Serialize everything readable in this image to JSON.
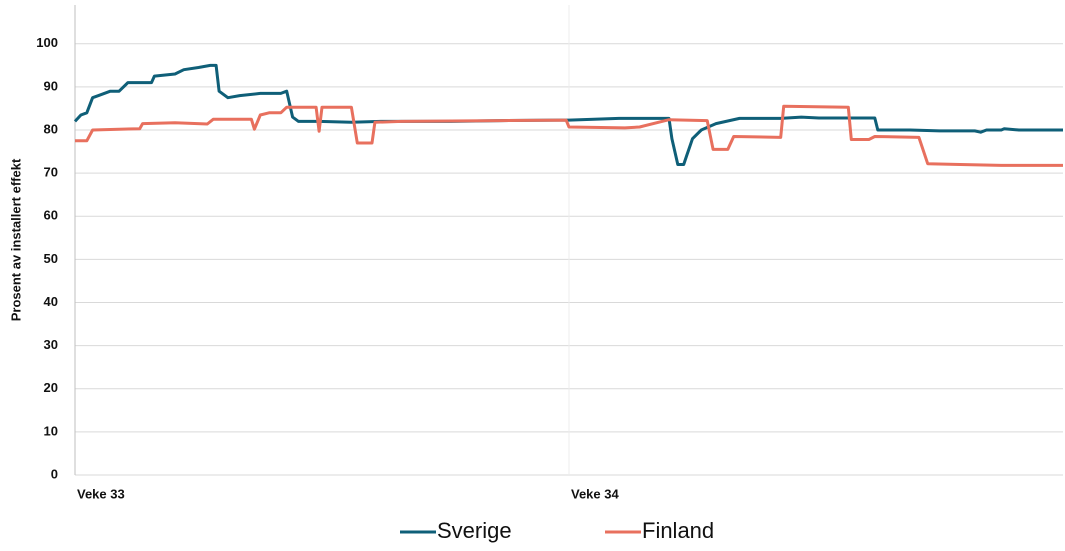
{
  "chart_data": {
    "type": "line",
    "y_label": "Prosent av installert effekt",
    "xlim": [
      0,
      336
    ],
    "xticks": [
      {
        "value": 0,
        "label": "Veke 33"
      },
      {
        "value": 168,
        "label": "Veke 34"
      }
    ],
    "ylim": [
      0,
      109
    ],
    "yticks": [
      0,
      10,
      20,
      30,
      40,
      50,
      60,
      70,
      80,
      90,
      100
    ],
    "grid": true,
    "legend": "bottom",
    "series": [
      {
        "name": "Sverige",
        "color": "#0f5f78",
        "x": [
          0,
          2,
          4,
          6,
          8,
          12,
          15,
          18,
          22,
          26,
          27,
          34,
          37,
          42,
          46,
          48,
          49,
          52,
          56,
          63,
          70,
          72,
          74,
          76,
          83,
          94,
          104,
          128,
          145,
          165,
          168,
          185,
          202,
          203,
          205,
          207,
          208,
          210,
          213,
          218,
          226,
          240,
          247,
          253,
          267,
          272,
          273,
          284,
          294,
          306,
          308,
          310,
          315,
          316,
          321,
          336
        ],
        "values": [
          82,
          83.5,
          84,
          87.5,
          88,
          89,
          89,
          91,
          91,
          91,
          92.5,
          93,
          94,
          94.5,
          95,
          95,
          89,
          87.5,
          88,
          88.5,
          88.5,
          89,
          83,
          82,
          82,
          81.8,
          82,
          82,
          82.2,
          82.3,
          82.3,
          82.7,
          82.7,
          78,
          72,
          72,
          74,
          78,
          80,
          81.5,
          82.7,
          82.7,
          83,
          82.8,
          82.8,
          82.8,
          80,
          80,
          79.8,
          79.8,
          79.5,
          80,
          80,
          80.3,
          80,
          80
        ]
      },
      {
        "name": "Finland",
        "color": "#e8705e",
        "x": [
          0,
          4,
          6,
          15,
          22,
          23,
          34,
          45,
          47,
          60,
          61,
          63,
          66,
          70,
          72,
          82,
          83,
          84,
          94,
          96,
          101,
          102,
          111,
          145,
          167,
          168,
          187,
          192,
          202,
          215,
          217,
          222,
          224,
          240,
          241,
          263,
          264,
          270,
          272,
          287,
          290,
          301,
          315,
          336
        ],
        "values": [
          77.5,
          77.5,
          80,
          80.2,
          80.3,
          81.5,
          81.7,
          81.4,
          82.5,
          82.5,
          80.2,
          83.5,
          84,
          84,
          85.3,
          85.3,
          79.7,
          85.3,
          85.3,
          77,
          77,
          81.8,
          82,
          82.2,
          82.3,
          80.7,
          80.5,
          80.7,
          82.4,
          82.2,
          75.5,
          75.5,
          78.5,
          78.3,
          85.5,
          85.3,
          77.8,
          77.8,
          78.5,
          78.3,
          72.2,
          72,
          71.8,
          71.8
        ]
      }
    ]
  }
}
